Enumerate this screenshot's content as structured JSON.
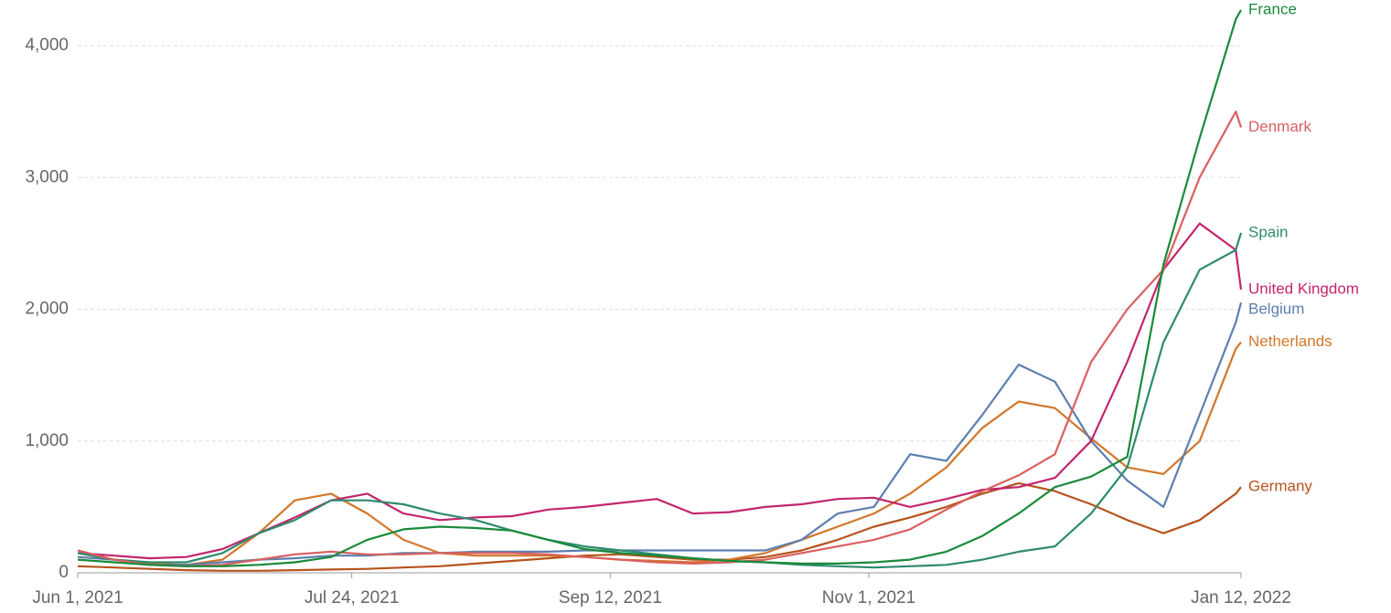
{
  "chart_data": {
    "type": "line",
    "x": [
      "2021-06-01",
      "2021-06-08",
      "2021-06-15",
      "2021-06-22",
      "2021-06-29",
      "2021-07-06",
      "2021-07-13",
      "2021-07-20",
      "2021-07-27",
      "2021-08-03",
      "2021-08-10",
      "2021-08-17",
      "2021-08-24",
      "2021-08-31",
      "2021-09-07",
      "2021-09-14",
      "2021-09-21",
      "2021-09-28",
      "2021-10-05",
      "2021-10-12",
      "2021-10-19",
      "2021-10-26",
      "2021-11-02",
      "2021-11-09",
      "2021-11-16",
      "2021-11-23",
      "2021-11-30",
      "2021-12-07",
      "2021-12-14",
      "2021-12-21",
      "2021-12-28",
      "2022-01-04",
      "2022-01-11",
      "2022-01-12"
    ],
    "xlim": [
      "2021-06-01",
      "2022-01-12"
    ],
    "xticks": [
      {
        "value": "2021-06-01",
        "label": "Jun 1, 2021"
      },
      {
        "value": "2021-07-24",
        "label": "Jul 24, 2021"
      },
      {
        "value": "2021-09-12",
        "label": "Sep 12, 2021"
      },
      {
        "value": "2021-11-01",
        "label": "Nov 1, 2021"
      },
      {
        "value": "2022-01-12",
        "label": "Jan 12, 2022"
      }
    ],
    "ylim": [
      0,
      4280
    ],
    "yticks": [
      0,
      {
        "value": 1000,
        "label": "1,000"
      },
      {
        "value": 2000,
        "label": "2,000"
      },
      {
        "value": 3000,
        "label": "3,000"
      },
      {
        "value": 4000,
        "label": "4,000"
      }
    ],
    "grid": true,
    "series": [
      {
        "name": "Germany",
        "color": "#b5531c",
        "values": [
          50,
          40,
          30,
          20,
          15,
          15,
          20,
          25,
          30,
          40,
          50,
          70,
          90,
          110,
          130,
          140,
          120,
          100,
          100,
          120,
          170,
          250,
          350,
          420,
          500,
          600,
          680,
          620,
          520,
          400,
          300,
          400,
          600,
          650
        ]
      },
      {
        "name": "Netherlands",
        "color": "#d2772a",
        "values": [
          150,
          100,
          70,
          60,
          100,
          300,
          550,
          600,
          450,
          250,
          150,
          130,
          130,
          130,
          120,
          100,
          90,
          80,
          100,
          150,
          250,
          350,
          450,
          600,
          800,
          1100,
          1300,
          1250,
          1020,
          800,
          750,
          1000,
          1700,
          1750
        ]
      },
      {
        "name": "Belgium",
        "color": "#5b7fae",
        "values": [
          120,
          100,
          60,
          60,
          80,
          100,
          110,
          130,
          130,
          150,
          150,
          160,
          160,
          160,
          170,
          170,
          170,
          170,
          170,
          170,
          250,
          450,
          500,
          900,
          850,
          1200,
          1580,
          1450,
          1000,
          700,
          500,
          1200,
          1900,
          2050
        ]
      },
      {
        "name": "United Kingdom",
        "color": "#c2266e",
        "values": [
          150,
          130,
          110,
          120,
          180,
          300,
          420,
          550,
          600,
          450,
          400,
          420,
          430,
          480,
          500,
          530,
          560,
          450,
          460,
          500,
          520,
          560,
          570,
          500,
          560,
          630,
          650,
          720,
          1000,
          1600,
          2300,
          2650,
          2450,
          2150
        ]
      },
      {
        "name": "Spain",
        "color": "#2e8b6e",
        "values": [
          150,
          100,
          80,
          80,
          150,
          300,
          400,
          550,
          550,
          520,
          450,
          400,
          320,
          250,
          200,
          170,
          140,
          110,
          90,
          80,
          60,
          50,
          40,
          50,
          60,
          100,
          160,
          200,
          450,
          800,
          1750,
          2300,
          2450,
          2580
        ]
      },
      {
        "name": "Denmark",
        "color": "#d9605f",
        "values": [
          170,
          100,
          60,
          50,
          60,
          100,
          140,
          160,
          140,
          140,
          150,
          150,
          150,
          140,
          120,
          100,
          80,
          70,
          80,
          100,
          150,
          200,
          250,
          330,
          480,
          620,
          740,
          900,
          1600,
          2000,
          2300,
          3000,
          3500,
          3380
        ]
      },
      {
        "name": "France",
        "color": "#1a8a3a",
        "values": [
          100,
          80,
          60,
          50,
          50,
          60,
          80,
          120,
          250,
          330,
          350,
          340,
          320,
          250,
          180,
          150,
          130,
          110,
          90,
          80,
          70,
          70,
          80,
          100,
          160,
          280,
          450,
          650,
          730,
          880,
          2340,
          3300,
          4200,
          4270
        ]
      }
    ]
  }
}
